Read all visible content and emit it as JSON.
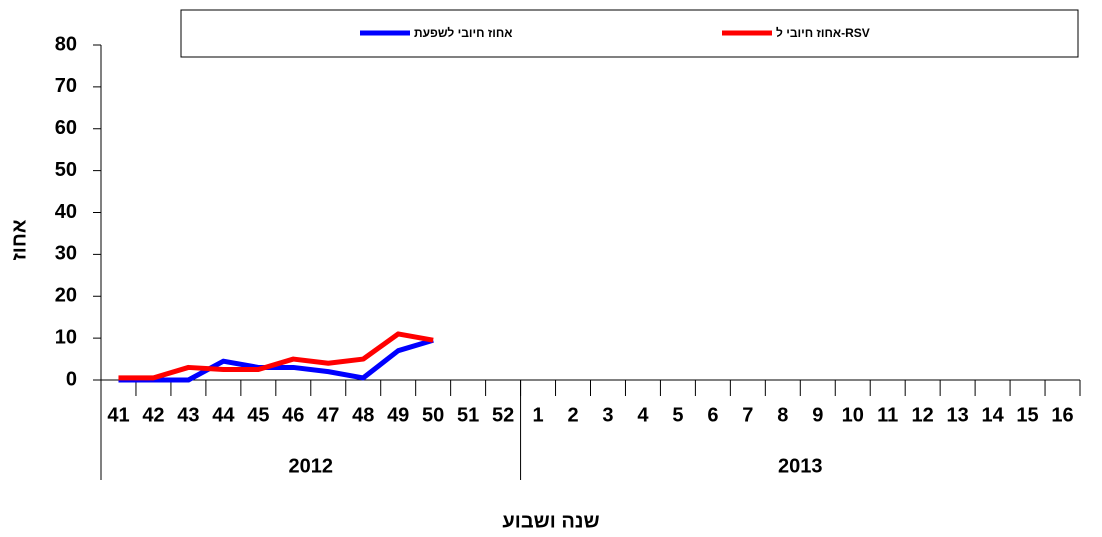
{
  "chart_data": {
    "type": "line",
    "y_label": "אחוז",
    "x_label": "שנה ושבוע",
    "categories": [
      "41",
      "42",
      "43",
      "44",
      "45",
      "46",
      "47",
      "48",
      "49",
      "50",
      "51",
      "52",
      "1",
      "2",
      "3",
      "4",
      "5",
      "6",
      "7",
      "8",
      "9",
      "10",
      "11",
      "12",
      "13",
      "14",
      "15",
      "16"
    ],
    "groups": [
      {
        "name": "2012",
        "start": 0,
        "end": 11
      },
      {
        "name": "2013",
        "start": 12,
        "end": 27
      }
    ],
    "series": [
      {
        "name": "אחוז חיובי לשפעת",
        "color": "#0000ff",
        "values": [
          0,
          0,
          0,
          4.5,
          3,
          3,
          2,
          0.5,
          7,
          9.5,
          null,
          null,
          null,
          null,
          null,
          null,
          null,
          null,
          null,
          null,
          null,
          null,
          null,
          null,
          null,
          null,
          null,
          null
        ]
      },
      {
        "name": "אחוז חיובי ל-RSV",
        "color": "#ff0000",
        "values": [
          0.5,
          0.5,
          3,
          2.5,
          2.5,
          5,
          4,
          5,
          11,
          9.5,
          null,
          null,
          null,
          null,
          null,
          null,
          null,
          null,
          null,
          null,
          null,
          null,
          null,
          null,
          null,
          null,
          null,
          null
        ]
      }
    ],
    "ylim": [
      0,
      80
    ],
    "yticks": [
      0,
      10,
      20,
      30,
      40,
      50,
      60,
      70,
      80
    ],
    "legend": "top"
  }
}
